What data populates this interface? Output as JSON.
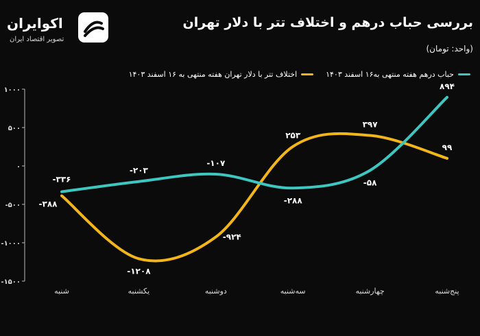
{
  "header": {
    "title": "بررسی حباب درهم و اختلاف تتر با دلار تهران",
    "unit": "(واحد: تومان)"
  },
  "brand": {
    "name": "اکوایران",
    "tagline": "تصویر اقتصاد ایران"
  },
  "colors": {
    "series_teal": "#3ec6c1",
    "series_gold": "#f2b51a",
    "axis": "#bbbbbb"
  },
  "chart_data": {
    "type": "line",
    "categories": [
      "شنبه",
      "یکشنبه",
      "دوشنبه",
      "سه‌شنبه",
      "چهارشنبه",
      "پنج‌شنبه"
    ],
    "series": [
      {
        "name": "حباب درهم هفته منتهی به۱۶ اسفند ۱۴۰۳",
        "values": [
          -336,
          -203,
          -107,
          -288,
          -58,
          894
        ],
        "labels": [
          "-۳۳۶",
          "-۲۰۳",
          "-۱۰۷",
          "-۲۸۸",
          "-۵۸",
          "۸۹۴"
        ]
      },
      {
        "name": "اختلاف تتر با دلار تهران هفته منتهی به ۱۶ اسفند ۱۴۰۳",
        "values": [
          -388,
          -1208,
          -924,
          253,
          397,
          99
        ],
        "labels": [
          "-۳۸۸",
          "-۱۲۰۸",
          "-۹۲۴",
          "۲۵۳",
          "۳۹۷",
          "۹۹"
        ]
      }
    ],
    "yticks": [
      1000,
      500,
      0,
      -500,
      -1000,
      -1500
    ],
    "ytick_labels": [
      "۱۰۰۰",
      "۵۰۰",
      "۰",
      "-۵۰۰",
      "-۱۰۰۰",
      "-۱۵۰۰"
    ],
    "ylim": [
      -1500,
      1000
    ],
    "legend_position": "top",
    "grid": false
  }
}
